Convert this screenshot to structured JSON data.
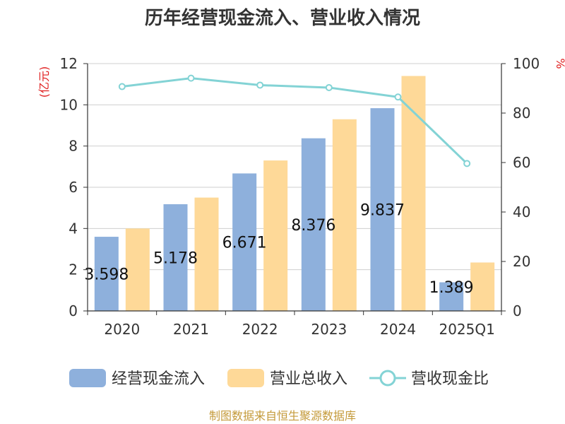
{
  "chart_data": {
    "type": "bar",
    "title": "历年经营现金流入、营业收入情况",
    "categories": [
      "2020",
      "2021",
      "2022",
      "2023",
      "2024",
      "2025Q1"
    ],
    "series": [
      {
        "name": "经营现金流入",
        "kind": "bar",
        "axis": "left",
        "color": "#8eb0dc",
        "values": [
          3.598,
          5.178,
          6.671,
          8.376,
          9.837,
          1.389
        ],
        "labels": [
          "3.598",
          "5.178",
          "6.671",
          "8.376",
          "9.837",
          "1.389"
        ]
      },
      {
        "name": "营业总收入",
        "kind": "bar",
        "axis": "left",
        "color": "#fed998",
        "values": [
          4.0,
          5.5,
          7.3,
          9.3,
          11.4,
          2.35
        ]
      },
      {
        "name": "营收现金比",
        "kind": "line",
        "axis": "right",
        "color": "#83d3d5",
        "values": [
          90.7,
          94.1,
          91.3,
          90.3,
          86.5,
          59.6
        ]
      }
    ],
    "y_left": {
      "unit": "(亿元)",
      "min": 0,
      "max": 12,
      "ticks": [
        "0",
        "2",
        "4",
        "6",
        "8",
        "10",
        "12"
      ]
    },
    "y_right": {
      "unit": "%",
      "min": 0,
      "max": 100,
      "ticks": [
        "0",
        "20",
        "40",
        "60",
        "80",
        "100"
      ]
    },
    "grid": true,
    "legend_position": "bottom"
  },
  "source": "制图数据来自恒生聚源数据库"
}
